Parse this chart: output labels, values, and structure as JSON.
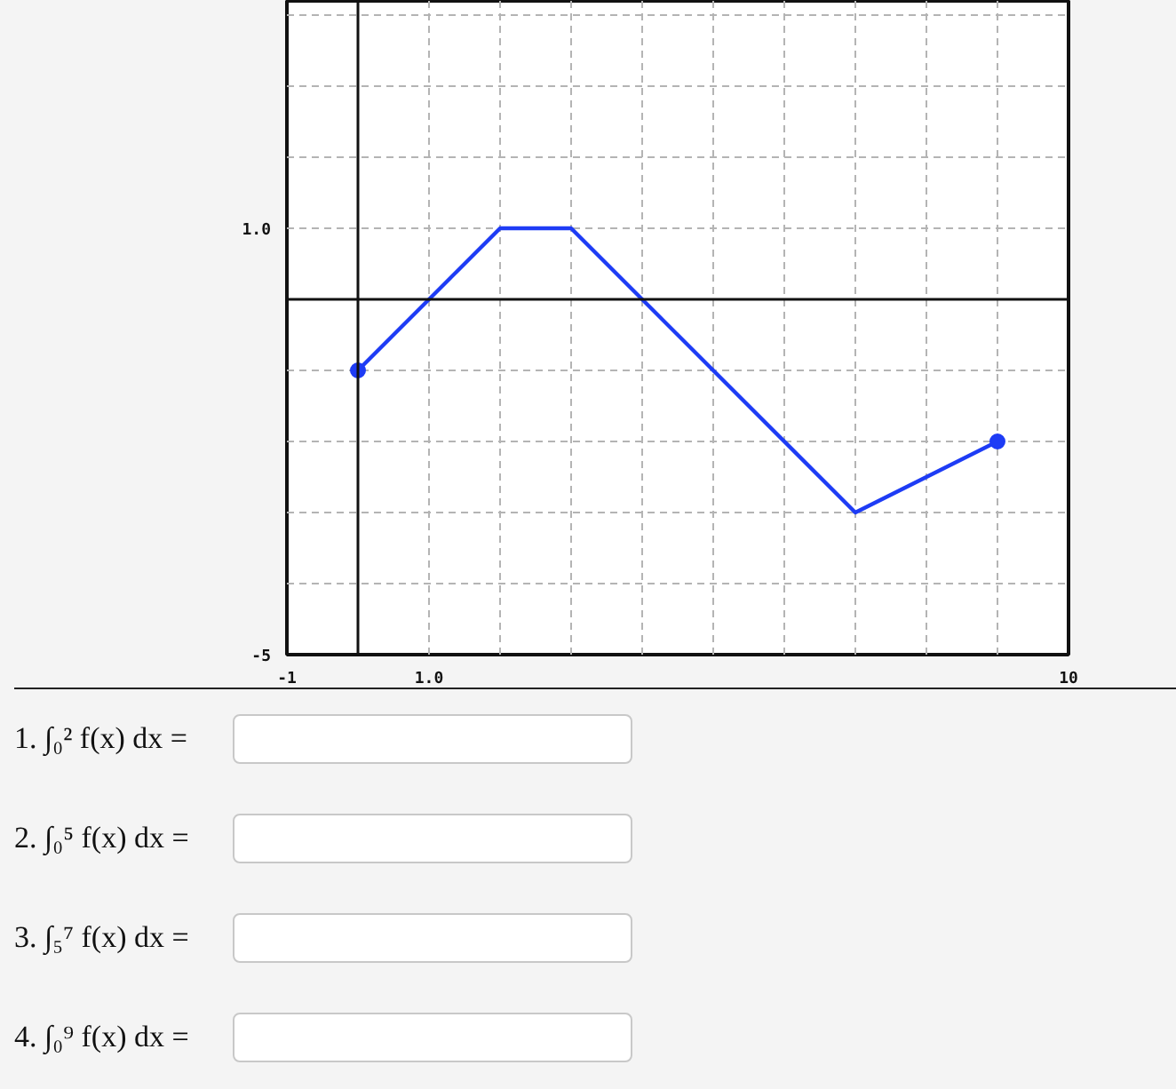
{
  "chart_data": {
    "type": "line",
    "series": [
      {
        "x": [
          0,
          2,
          3,
          7,
          9
        ],
        "values": [
          -1,
          1,
          1,
          -3,
          -2
        ],
        "color": "#1e3cf5",
        "marker": "none"
      },
      {
        "type": "scatter",
        "x": [
          0,
          9
        ],
        "values": [
          -1,
          -2
        ],
        "color": "#1e3cf5",
        "marker": "circle"
      }
    ],
    "xlim": [
      -1,
      10
    ],
    "ylim": [
      -5,
      4.2
    ],
    "xticks": [
      -1,
      {
        "value": 0,
        "label": null
      },
      {
        "value": 1,
        "label": "1.0"
      },
      {
        "value": 2,
        "label": null
      },
      {
        "value": 3,
        "label": null
      },
      {
        "value": 4,
        "label": null
      },
      {
        "value": 5,
        "label": null
      },
      {
        "value": 6,
        "label": null
      },
      {
        "value": 7,
        "label": null
      },
      {
        "value": 8,
        "label": null
      },
      {
        "value": 9,
        "label": null
      },
      10
    ],
    "yticks": [
      -5,
      {
        "value": -4,
        "label": null
      },
      {
        "value": -3,
        "label": null
      },
      {
        "value": -2,
        "label": null
      },
      {
        "value": -1,
        "label": null
      },
      {
        "value": 0,
        "label": null
      },
      {
        "value": 1,
        "label": "1.0"
      },
      {
        "value": 2,
        "label": null
      },
      {
        "value": 3,
        "label": null
      },
      {
        "value": 4,
        "label": null
      }
    ],
    "grid": true,
    "annotations": [
      "1. ∫₀² f(x) dx =",
      "2. ∫₀⁵ f(x) dx =",
      "3. ∫₅⁷ f(x) dx =",
      "4. ∫₀⁹ f(x) dx ="
    ]
  }
}
